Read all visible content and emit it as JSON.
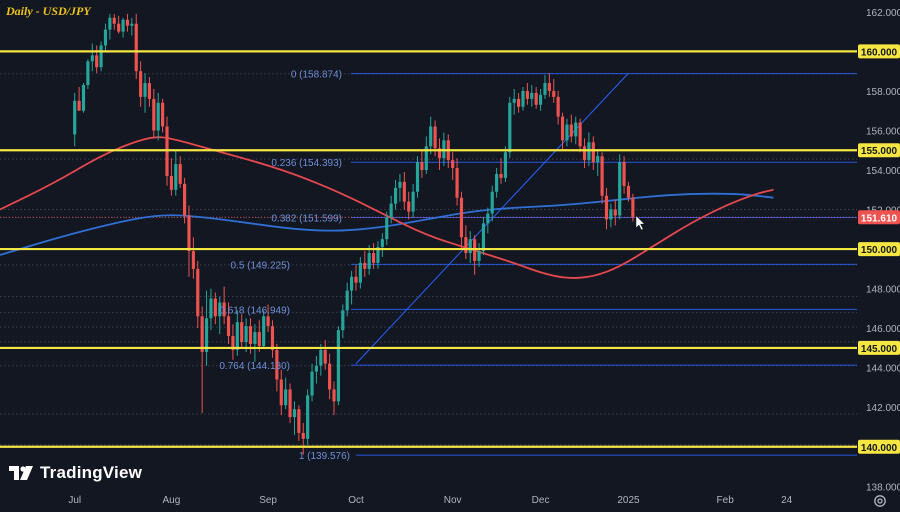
{
  "title": "Daily - USD/JPY",
  "brand": "TradingView",
  "colors": {
    "background": "#131722",
    "grid_dotted": "#2a2e39",
    "key_level": "#f5e642",
    "fib": "#2962ff",
    "fib_label": "#6f8fd8",
    "ma_red": "#e5484d",
    "ma_blue": "#2f6fd6",
    "candle_up": "#26a69a",
    "candle_down": "#ef5350",
    "axis_text": "#b2b5be",
    "price_tag": "#ef5350"
  },
  "chart_data": {
    "type": "candlestick",
    "symbol": "USD/JPY",
    "timeframe": "Daily",
    "y_axis": {
      "range": [
        136.7,
        162.6
      ],
      "ticks": [
        "138.000",
        "140.000",
        "142.000",
        "144.000",
        "146.000",
        "148.000",
        "150.000",
        "152.000",
        "154.000",
        "156.000",
        "158.000",
        "160.000",
        "162.000"
      ]
    },
    "x_axis": {
      "ticks": [
        {
          "label": "Jul",
          "idx": 0
        },
        {
          "label": "Aug",
          "idx": 22
        },
        {
          "label": "Sep",
          "idx": 44
        },
        {
          "label": "Oct",
          "idx": 64
        },
        {
          "label": "Nov",
          "idx": 86
        },
        {
          "label": "Dec",
          "idx": 106
        },
        {
          "label": "2025",
          "idx": 126
        },
        {
          "label": "Feb",
          "idx": 148
        },
        {
          "label": "24",
          "idx": 162
        }
      ],
      "idx_range": [
        -17,
        178
      ]
    },
    "key_levels": [
      {
        "value": 160.0,
        "label": "160.000"
      },
      {
        "value": 155.0,
        "label": "155.000"
      },
      {
        "value": 150.0,
        "label": "150.000"
      },
      {
        "value": 145.0,
        "label": "145.000"
      },
      {
        "value": 140.0,
        "label": "140.000"
      }
    ],
    "fib_levels": [
      {
        "ratio": "0",
        "value": 158.874,
        "label": "0 (158.874)"
      },
      {
        "ratio": "0.236",
        "value": 154.393,
        "label": "0.236 (154.393)"
      },
      {
        "ratio": "0.382",
        "value": 151.599,
        "label": "0.382 (151.599)"
      },
      {
        "ratio": "0.5",
        "value": 149.225,
        "label": "0.5 (149.225)"
      },
      {
        "ratio": "0.618",
        "value": 146.949,
        "label": "0.618 (146.949)"
      },
      {
        "ratio": "0.764",
        "value": 144.13,
        "label": "0.764 (144.130)"
      },
      {
        "ratio": "1",
        "value": 139.576,
        "label": "1 (139.576)"
      }
    ],
    "dotted_levels": [
      158.87,
      154.55,
      152.0,
      151.6,
      149.2,
      147.6,
      146.8,
      146.05,
      145.3,
      144.1,
      141.65,
      140.1
    ],
    "current_price": {
      "value": 151.61,
      "label": "151.610"
    },
    "trend_line": {
      "from": {
        "idx": 64,
        "value": 144.2
      },
      "to": {
        "idx": 126,
        "value": 158.9
      }
    },
    "ma_red": [
      [
        -17,
        152.0
      ],
      [
        -5,
        153.3
      ],
      [
        5,
        154.6
      ],
      [
        12,
        155.3
      ],
      [
        18,
        155.7
      ],
      [
        22,
        155.6
      ],
      [
        30,
        155.1
      ],
      [
        40,
        154.5
      ],
      [
        50,
        153.8
      ],
      [
        60,
        152.9
      ],
      [
        70,
        151.8
      ],
      [
        80,
        150.7
      ],
      [
        90,
        150.0
      ],
      [
        100,
        149.3
      ],
      [
        106,
        148.8
      ],
      [
        112,
        148.5
      ],
      [
        118,
        148.6
      ],
      [
        124,
        149.1
      ],
      [
        132,
        150.2
      ],
      [
        140,
        151.3
      ],
      [
        148,
        152.2
      ],
      [
        155,
        152.8
      ],
      [
        159,
        153.0
      ]
    ],
    "ma_blue": [
      [
        -17,
        149.7
      ],
      [
        -5,
        150.5
      ],
      [
        5,
        151.1
      ],
      [
        15,
        151.6
      ],
      [
        22,
        151.75
      ],
      [
        30,
        151.6
      ],
      [
        40,
        151.3
      ],
      [
        50,
        151.0
      ],
      [
        60,
        150.9
      ],
      [
        70,
        151.1
      ],
      [
        80,
        151.5
      ],
      [
        90,
        151.9
      ],
      [
        100,
        152.1
      ],
      [
        110,
        152.2
      ],
      [
        120,
        152.4
      ],
      [
        130,
        152.65
      ],
      [
        140,
        152.8
      ],
      [
        150,
        152.8
      ],
      [
        155,
        152.7
      ],
      [
        159,
        152.6
      ]
    ],
    "candles": [
      {
        "o": 155.8,
        "h": 157.9,
        "l": 155.2,
        "c": 157.5
      },
      {
        "o": 157.5,
        "h": 158.2,
        "l": 157.0,
        "c": 157.0
      },
      {
        "o": 157.0,
        "h": 158.4,
        "l": 156.9,
        "c": 158.3
      },
      {
        "o": 158.3,
        "h": 159.6,
        "l": 158.1,
        "c": 159.5
      },
      {
        "o": 159.5,
        "h": 160.4,
        "l": 159.0,
        "c": 159.8
      },
      {
        "o": 159.8,
        "h": 160.3,
        "l": 158.9,
        "c": 159.2
      },
      {
        "o": 159.2,
        "h": 160.5,
        "l": 159.0,
        "c": 160.3
      },
      {
        "o": 160.3,
        "h": 161.4,
        "l": 160.0,
        "c": 161.1
      },
      {
        "o": 161.1,
        "h": 161.9,
        "l": 160.6,
        "c": 161.7
      },
      {
        "o": 161.7,
        "h": 161.9,
        "l": 161.1,
        "c": 161.4
      },
      {
        "o": 161.4,
        "h": 161.8,
        "l": 160.9,
        "c": 161.0
      },
      {
        "o": 161.0,
        "h": 161.7,
        "l": 160.7,
        "c": 161.6
      },
      {
        "o": 161.6,
        "h": 161.9,
        "l": 161.0,
        "c": 161.3
      },
      {
        "o": 161.3,
        "h": 161.7,
        "l": 160.8,
        "c": 161.4
      },
      {
        "o": 161.4,
        "h": 161.9,
        "l": 158.6,
        "c": 159.0
      },
      {
        "o": 159.0,
        "h": 159.5,
        "l": 157.2,
        "c": 157.7
      },
      {
        "o": 157.7,
        "h": 158.9,
        "l": 156.9,
        "c": 158.4
      },
      {
        "o": 158.4,
        "h": 158.7,
        "l": 157.2,
        "c": 157.6
      },
      {
        "o": 157.6,
        "h": 158.1,
        "l": 155.6,
        "c": 156.0
      },
      {
        "o": 156.0,
        "h": 157.9,
        "l": 155.5,
        "c": 157.4
      },
      {
        "o": 157.4,
        "h": 157.6,
        "l": 155.9,
        "c": 156.2
      },
      {
        "o": 156.2,
        "h": 156.7,
        "l": 153.2,
        "c": 153.7
      },
      {
        "o": 153.7,
        "h": 154.6,
        "l": 152.7,
        "c": 153.0
      },
      {
        "o": 153.0,
        "h": 155.0,
        "l": 152.7,
        "c": 154.3
      },
      {
        "o": 154.3,
        "h": 154.7,
        "l": 153.1,
        "c": 153.3
      },
      {
        "o": 153.3,
        "h": 153.6,
        "l": 151.3,
        "c": 151.7
      },
      {
        "o": 151.7,
        "h": 152.2,
        "l": 148.6,
        "c": 149.9
      },
      {
        "o": 149.9,
        "h": 150.6,
        "l": 148.5,
        "c": 149.0
      },
      {
        "o": 149.0,
        "h": 149.4,
        "l": 146.0,
        "c": 146.6
      },
      {
        "o": 146.6,
        "h": 147.1,
        "l": 141.7,
        "c": 144.8
      },
      {
        "o": 144.8,
        "h": 147.9,
        "l": 144.1,
        "c": 146.5
      },
      {
        "o": 146.5,
        "h": 148.0,
        "l": 145.9,
        "c": 147.5
      },
      {
        "o": 147.5,
        "h": 147.8,
        "l": 146.2,
        "c": 146.6
      },
      {
        "o": 146.6,
        "h": 147.6,
        "l": 145.7,
        "c": 147.3
      },
      {
        "o": 147.3,
        "h": 148.1,
        "l": 146.2,
        "c": 146.6
      },
      {
        "o": 146.6,
        "h": 147.3,
        "l": 145.2,
        "c": 145.6
      },
      {
        "o": 145.6,
        "h": 146.2,
        "l": 144.4,
        "c": 144.9
      },
      {
        "o": 144.9,
        "h": 146.9,
        "l": 144.6,
        "c": 146.3
      },
      {
        "o": 146.3,
        "h": 146.7,
        "l": 145.0,
        "c": 145.3
      },
      {
        "o": 145.3,
        "h": 146.5,
        "l": 144.8,
        "c": 146.1
      },
      {
        "o": 146.1,
        "h": 146.5,
        "l": 144.7,
        "c": 145.2
      },
      {
        "o": 145.2,
        "h": 146.2,
        "l": 144.3,
        "c": 145.8
      },
      {
        "o": 145.8,
        "h": 146.4,
        "l": 144.8,
        "c": 145.1
      },
      {
        "o": 145.1,
        "h": 146.9,
        "l": 145.0,
        "c": 146.6
      },
      {
        "o": 146.6,
        "h": 147.2,
        "l": 145.8,
        "c": 146.1
      },
      {
        "o": 146.1,
        "h": 146.4,
        "l": 144.5,
        "c": 144.9
      },
      {
        "o": 144.9,
        "h": 145.2,
        "l": 142.8,
        "c": 143.4
      },
      {
        "o": 143.4,
        "h": 143.9,
        "l": 141.6,
        "c": 142.1
      },
      {
        "o": 142.1,
        "h": 143.5,
        "l": 141.9,
        "c": 142.9
      },
      {
        "o": 142.9,
        "h": 143.2,
        "l": 141.2,
        "c": 141.5
      },
      {
        "o": 141.5,
        "h": 142.3,
        "l": 140.6,
        "c": 141.9
      },
      {
        "o": 141.9,
        "h": 142.1,
        "l": 140.3,
        "c": 140.7
      },
      {
        "o": 140.7,
        "h": 141.2,
        "l": 139.6,
        "c": 140.4
      },
      {
        "o": 140.4,
        "h": 142.9,
        "l": 140.1,
        "c": 142.6
      },
      {
        "o": 142.6,
        "h": 144.2,
        "l": 142.3,
        "c": 143.8
      },
      {
        "o": 143.8,
        "h": 144.6,
        "l": 143.2,
        "c": 144.1
      },
      {
        "o": 144.1,
        "h": 145.2,
        "l": 143.6,
        "c": 144.9
      },
      {
        "o": 144.9,
        "h": 145.4,
        "l": 143.9,
        "c": 144.2
      },
      {
        "o": 144.2,
        "h": 144.7,
        "l": 142.4,
        "c": 142.9
      },
      {
        "o": 142.9,
        "h": 143.3,
        "l": 141.6,
        "c": 142.3
      },
      {
        "o": 142.3,
        "h": 146.1,
        "l": 142.1,
        "c": 145.9
      },
      {
        "o": 145.9,
        "h": 147.2,
        "l": 145.5,
        "c": 146.9
      },
      {
        "o": 146.9,
        "h": 148.3,
        "l": 146.6,
        "c": 147.9
      },
      {
        "o": 147.9,
        "h": 148.9,
        "l": 147.2,
        "c": 148.6
      },
      {
        "o": 148.6,
        "h": 149.2,
        "l": 147.9,
        "c": 148.3
      },
      {
        "o": 148.3,
        "h": 149.6,
        "l": 148.0,
        "c": 149.3
      },
      {
        "o": 149.3,
        "h": 149.9,
        "l": 148.6,
        "c": 149.0
      },
      {
        "o": 149.0,
        "h": 150.2,
        "l": 148.7,
        "c": 149.8
      },
      {
        "o": 149.8,
        "h": 150.3,
        "l": 149.0,
        "c": 149.3
      },
      {
        "o": 149.3,
        "h": 150.4,
        "l": 149.0,
        "c": 150.1
      },
      {
        "o": 150.1,
        "h": 150.8,
        "l": 149.6,
        "c": 150.5
      },
      {
        "o": 150.5,
        "h": 151.9,
        "l": 150.2,
        "c": 151.6
      },
      {
        "o": 151.6,
        "h": 152.7,
        "l": 151.3,
        "c": 152.3
      },
      {
        "o": 152.3,
        "h": 153.5,
        "l": 152.0,
        "c": 153.1
      },
      {
        "o": 153.1,
        "h": 153.8,
        "l": 152.4,
        "c": 153.4
      },
      {
        "o": 153.4,
        "h": 153.9,
        "l": 152.0,
        "c": 152.4
      },
      {
        "o": 152.4,
        "h": 152.9,
        "l": 151.5,
        "c": 151.9
      },
      {
        "o": 151.9,
        "h": 153.3,
        "l": 151.6,
        "c": 152.9
      },
      {
        "o": 152.9,
        "h": 154.7,
        "l": 152.6,
        "c": 154.4
      },
      {
        "o": 154.4,
        "h": 155.0,
        "l": 153.6,
        "c": 154.0
      },
      {
        "o": 154.0,
        "h": 155.7,
        "l": 153.8,
        "c": 155.2
      },
      {
        "o": 155.2,
        "h": 156.7,
        "l": 154.8,
        "c": 156.2
      },
      {
        "o": 156.2,
        "h": 156.5,
        "l": 154.7,
        "c": 155.1
      },
      {
        "o": 155.1,
        "h": 155.6,
        "l": 154.0,
        "c": 154.6
      },
      {
        "o": 154.6,
        "h": 155.9,
        "l": 154.2,
        "c": 155.5
      },
      {
        "o": 155.5,
        "h": 155.8,
        "l": 154.1,
        "c": 154.5
      },
      {
        "o": 154.5,
        "h": 154.9,
        "l": 153.5,
        "c": 154.1
      },
      {
        "o": 154.1,
        "h": 154.6,
        "l": 152.2,
        "c": 152.6
      },
      {
        "o": 152.6,
        "h": 152.9,
        "l": 150.0,
        "c": 150.6
      },
      {
        "o": 150.6,
        "h": 151.2,
        "l": 149.5,
        "c": 149.8
      },
      {
        "o": 149.8,
        "h": 150.9,
        "l": 149.3,
        "c": 150.5
      },
      {
        "o": 150.5,
        "h": 150.7,
        "l": 148.7,
        "c": 149.4
      },
      {
        "o": 149.4,
        "h": 150.3,
        "l": 149.1,
        "c": 149.9
      },
      {
        "o": 149.9,
        "h": 151.6,
        "l": 149.7,
        "c": 151.3
      },
      {
        "o": 151.3,
        "h": 152.1,
        "l": 150.8,
        "c": 151.8
      },
      {
        "o": 151.8,
        "h": 153.2,
        "l": 151.4,
        "c": 152.9
      },
      {
        "o": 152.9,
        "h": 154.1,
        "l": 152.6,
        "c": 153.8
      },
      {
        "o": 153.8,
        "h": 154.6,
        "l": 153.3,
        "c": 153.6
      },
      {
        "o": 153.6,
        "h": 155.2,
        "l": 153.4,
        "c": 154.9
      },
      {
        "o": 154.9,
        "h": 157.7,
        "l": 154.6,
        "c": 157.4
      },
      {
        "o": 157.4,
        "h": 158.1,
        "l": 156.8,
        "c": 157.6
      },
      {
        "o": 157.6,
        "h": 157.9,
        "l": 156.9,
        "c": 157.2
      },
      {
        "o": 157.2,
        "h": 158.2,
        "l": 157.0,
        "c": 158.0
      },
      {
        "o": 158.0,
        "h": 158.4,
        "l": 157.3,
        "c": 157.6
      },
      {
        "o": 157.6,
        "h": 158.3,
        "l": 157.2,
        "c": 157.9
      },
      {
        "o": 157.9,
        "h": 158.2,
        "l": 157.1,
        "c": 157.3
      },
      {
        "o": 157.3,
        "h": 158.1,
        "l": 157.0,
        "c": 157.8
      },
      {
        "o": 157.8,
        "h": 158.8,
        "l": 157.6,
        "c": 158.4
      },
      {
        "o": 158.4,
        "h": 158.9,
        "l": 157.7,
        "c": 158.0
      },
      {
        "o": 158.0,
        "h": 158.6,
        "l": 157.4,
        "c": 157.7
      },
      {
        "o": 157.7,
        "h": 158.0,
        "l": 156.3,
        "c": 156.7
      },
      {
        "o": 156.7,
        "h": 156.9,
        "l": 155.0,
        "c": 155.5
      },
      {
        "o": 155.5,
        "h": 156.6,
        "l": 155.2,
        "c": 156.3
      },
      {
        "o": 156.3,
        "h": 156.8,
        "l": 155.4,
        "c": 155.7
      },
      {
        "o": 155.7,
        "h": 156.7,
        "l": 155.3,
        "c": 156.4
      },
      {
        "o": 156.4,
        "h": 156.6,
        "l": 154.9,
        "c": 155.2
      },
      {
        "o": 155.2,
        "h": 155.6,
        "l": 154.1,
        "c": 154.5
      },
      {
        "o": 154.5,
        "h": 155.9,
        "l": 154.2,
        "c": 155.4
      },
      {
        "o": 155.4,
        "h": 155.7,
        "l": 154.0,
        "c": 154.4
      },
      {
        "o": 154.4,
        "h": 155.0,
        "l": 153.7,
        "c": 154.7
      },
      {
        "o": 154.7,
        "h": 154.9,
        "l": 152.3,
        "c": 152.7
      },
      {
        "o": 152.7,
        "h": 153.1,
        "l": 151.0,
        "c": 151.5
      },
      {
        "o": 151.5,
        "h": 152.3,
        "l": 151.1,
        "c": 152.0
      },
      {
        "o": 152.0,
        "h": 152.5,
        "l": 151.2,
        "c": 151.7
      },
      {
        "o": 151.7,
        "h": 154.8,
        "l": 151.5,
        "c": 154.4
      },
      {
        "o": 154.4,
        "h": 154.7,
        "l": 152.8,
        "c": 153.2
      },
      {
        "o": 153.2,
        "h": 153.4,
        "l": 152.4,
        "c": 152.6
      },
      {
        "o": 152.6,
        "h": 152.8,
        "l": 151.4,
        "c": 151.61
      }
    ]
  }
}
